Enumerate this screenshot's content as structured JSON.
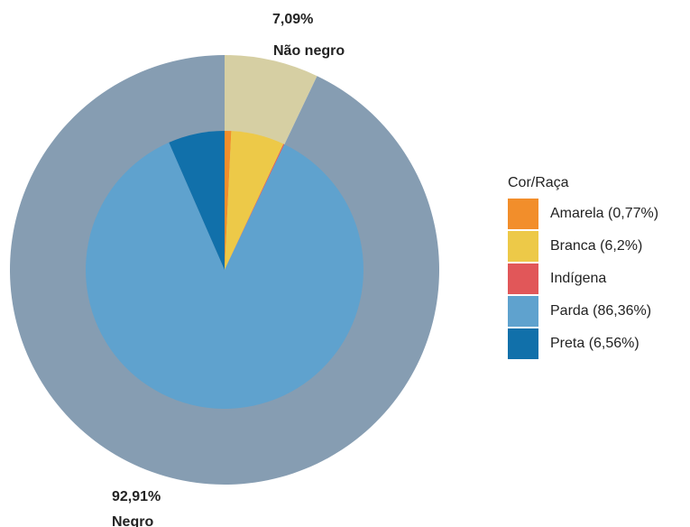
{
  "chart_data": {
    "type": "pie",
    "subtype": "nested-donut",
    "legend_title": "Cor/Raça",
    "legend_position": "right",
    "outer_ring": [
      {
        "name": "Não negro",
        "pct_label": "7,09%",
        "value": 7.09,
        "color": "#d6cfa3"
      },
      {
        "name": "Negro",
        "pct_label": "92,91%",
        "value": 92.91,
        "color": "#869db2"
      }
    ],
    "inner_pie": [
      {
        "name": "Amarela",
        "legend_label": "Amarela (0,77%)",
        "value": 0.77,
        "color": "#f28e2b"
      },
      {
        "name": "Branca",
        "legend_label": "Branca (6,2%)",
        "value": 6.2,
        "color": "#edc948"
      },
      {
        "name": "Indígena",
        "legend_label": "Indígena",
        "value": 0.11,
        "color": "#e15759"
      },
      {
        "name": "Parda",
        "legend_label": "Parda (86,36%)",
        "value": 86.36,
        "color": "#5fa2ce"
      },
      {
        "name": "Preta",
        "legend_label": "Preta (6,56%)",
        "value": 6.56,
        "color": "#1170aa"
      }
    ]
  }
}
